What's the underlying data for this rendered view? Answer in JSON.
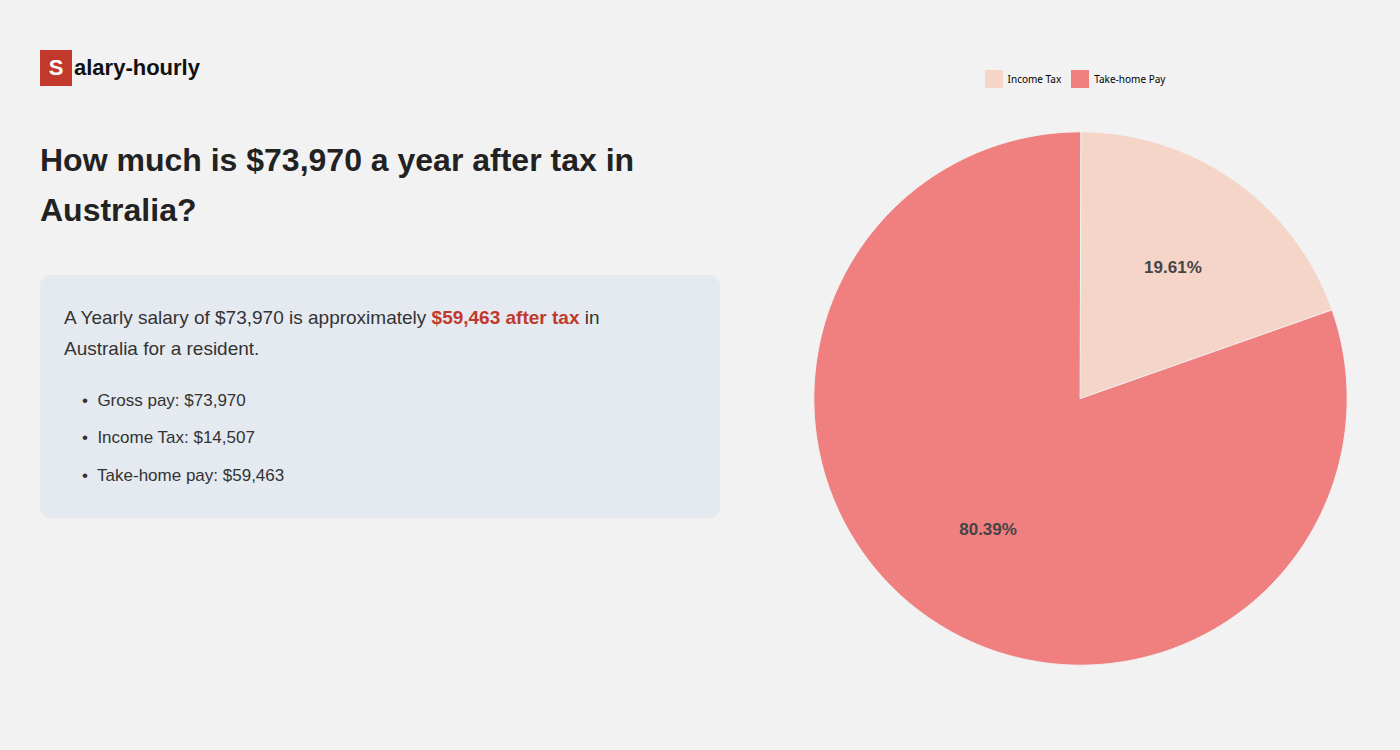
{
  "chart_data": {
    "type": "pie",
    "title": "How much is $73,970 a year after tax in\nAustralia?",
    "annotations": [
      [
        {
          "text": "S",
          "color": "#c0392b"
        },
        {
          "text": "alary-hourly"
        }
      ],
      [
        {
          "text": "A Yearly salary of $73,970 is approximately "
        },
        {
          "text": "$59,463 after tax",
          "color": "#c0392b"
        },
        {
          "text": " in"
        }
      ],
      [
        {
          "text": "Australia for a resident."
        }
      ],
      [
        {
          "text": "•  Gross pay: $73,970"
        }
      ],
      [
        {
          "text": "•  Income Tax: $14,507"
        }
      ],
      [
        {
          "text": "•  Take-home pay: $59,463"
        }
      ]
    ],
    "categories": [
      "Income Tax",
      "Take-home Pay"
    ],
    "values": [
      19.61,
      80.39
    ],
    "value_labels": [
      "19.61%",
      "80.39%"
    ],
    "colors": [
      "#f5d5c8",
      "#f08080"
    ],
    "data_labels": true,
    "legend": "top"
  }
}
